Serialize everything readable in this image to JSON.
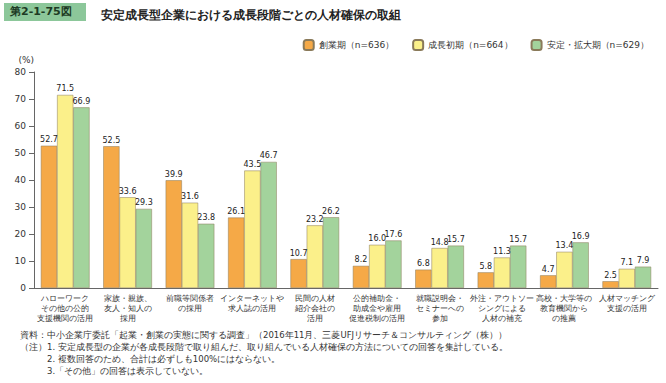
{
  "chart_data": {
    "type": "bar",
    "figure_label": "第2-1-75図",
    "title": "安定成長型企業における成長段階ごとの人材確保の取組",
    "y_label": "(%)",
    "categories": [
      "ハローワーク\nその他の公的\n支援機関の活用",
      "家族・親族、\n友人・知人の\n採用",
      "前職等関係者\nの採用",
      "インターネットや\n求人誌の活用",
      "民間の人材\n紹介会社の\n活用",
      "公的補助金・\n助成金や雇用\n促進税制の活用",
      "就職説明会・\nセミナーへの\n参加",
      "外注・アウトソー\nシングによる\n人材の補充",
      "高校・大学等の\n教育機関から\nの推薦",
      "人材マッチング\n支援の活用"
    ],
    "series": [
      {
        "name": "創業期（n=636）",
        "color": "#f5a947",
        "values": [
          52.7,
          52.5,
          39.9,
          26.1,
          10.7,
          8.2,
          6.8,
          5.8,
          4.7,
          2.5
        ],
        "value_labels": [
          "52.7",
          "52.5",
          "39.9",
          "26.1",
          "10.7",
          "8.2",
          "6.8",
          "5.8",
          "4.7",
          "2.5"
        ]
      },
      {
        "name": "成長初期（n=664）",
        "color": "#fbf08a",
        "values": [
          71.5,
          33.6,
          31.6,
          43.5,
          23.2,
          16.0,
          14.8,
          11.3,
          13.4,
          7.1
        ],
        "value_labels": [
          "71.5",
          "33.6",
          "31.6",
          "43.5",
          "23.2",
          "16.0",
          "14.8",
          "11.3",
          "13.4",
          "7.1"
        ]
      },
      {
        "name": "安定・拡大期（n=629）",
        "color": "#a3d39c",
        "values": [
          66.9,
          29.3,
          23.8,
          46.7,
          26.2,
          17.6,
          15.7,
          15.7,
          16.9,
          7.9
        ],
        "value_labels": [
          "66.9",
          "29.3",
          "23.8",
          "46.7",
          "26.2",
          "17.6",
          "15.7",
          "15.7",
          "16.9",
          "7.9"
        ]
      }
    ],
    "ylim": [
      0,
      80
    ],
    "yticks": [
      0,
      10,
      20,
      30,
      40,
      50,
      60,
      70,
      80
    ],
    "grid": false,
    "legend": "top-right",
    "data_labels": true,
    "annotations": [
      "資料：中小企業庁委託「起業・創業の実態に関する調査」（2016年11月、三菱UFJリサーチ＆コンサルティング（株））",
      "（注）1. 安定成長型の企業が各成長段階で取り組んだ、取り組んでいる人材確保の方法についての回答を集計している。",
      "　　　2. 複数回答のため、合計は必ずしも100%にはならない。",
      "　　　3.「その他」の回答は表示していない。"
    ]
  }
}
